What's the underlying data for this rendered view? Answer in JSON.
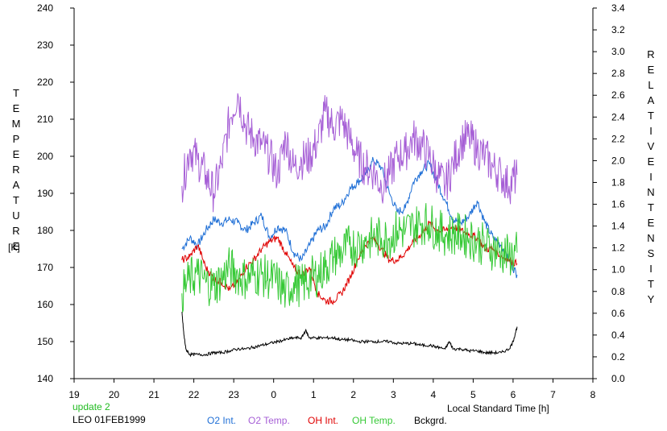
{
  "labels": {
    "left_axis_title": "TEMPERATURE",
    "left_axis_unit": "[K]",
    "right_axis_title_1": "RELATIVE",
    "right_axis_title_2": "INTENSITY",
    "x_axis_title": "Local Standard Time [h]",
    "update": "update 2",
    "station_date": "LEO 01FEB1999"
  },
  "colors": {
    "o2_int": "#1f6fd6",
    "o2_temp": "#a65fd6",
    "oh_int": "#e00000",
    "oh_temp": "#36c936",
    "bckgrd": "#000000",
    "update": "#22bb22"
  },
  "chart_data": {
    "type": "line",
    "x_ticks": [
      "19",
      "20",
      "21",
      "22",
      "23",
      "0",
      "1",
      "2",
      "3",
      "4",
      "5",
      "6",
      "7",
      "8"
    ],
    "xlim": [
      19,
      32
    ],
    "ylim_left": [
      140,
      240
    ],
    "yticks_left": [
      "140",
      "150",
      "160",
      "170",
      "180",
      "190",
      "200",
      "210",
      "220",
      "230",
      "240"
    ],
    "ylim_right": [
      0.0,
      3.4
    ],
    "yticks_right": [
      "0.0",
      "0.2",
      "0.4",
      "0.6",
      "0.8",
      "1.0",
      "1.2",
      "1.4",
      "1.6",
      "1.8",
      "2.0",
      "2.2",
      "2.4",
      "2.6",
      "2.8",
      "3.0",
      "3.2",
      "3.4"
    ],
    "series": [
      {
        "name": "O2 Int.",
        "axis": "left",
        "color_key": "o2_int",
        "x": [
          21.7,
          21.9,
          22.1,
          22.3,
          22.5,
          22.7,
          22.9,
          23.1,
          23.3,
          23.5,
          23.7,
          23.9,
          24.1,
          24.3,
          24.5,
          24.7,
          24.9,
          25.1,
          25.3,
          25.5,
          25.7,
          25.9,
          26.1,
          26.3,
          26.5,
          26.7,
          26.9,
          27.1,
          27.3,
          27.5,
          27.7,
          27.9,
          28.1,
          28.3,
          28.5,
          28.7,
          28.9,
          29.1,
          29.3,
          29.5,
          29.7,
          29.9,
          30.1
        ],
        "y": [
          175,
          178,
          176,
          180,
          183,
          182,
          183,
          182,
          180,
          182,
          184,
          178,
          181,
          180,
          174,
          172,
          176,
          180,
          181,
          186,
          187,
          191,
          193,
          195,
          199,
          197,
          190,
          185,
          186,
          193,
          196,
          198,
          193,
          188,
          183,
          182,
          184,
          188,
          182,
          178,
          176,
          172,
          168
        ]
      },
      {
        "name": "O2 Temp.",
        "axis": "left",
        "color_key": "o2_temp",
        "x": [
          21.7,
          21.9,
          22.1,
          22.3,
          22.5,
          22.7,
          22.9,
          23.1,
          23.3,
          23.5,
          23.7,
          23.9,
          24.1,
          24.3,
          24.5,
          24.7,
          24.9,
          25.1,
          25.3,
          25.5,
          25.7,
          25.9,
          26.1,
          26.3,
          26.5,
          26.7,
          26.9,
          27.1,
          27.3,
          27.5,
          27.7,
          27.9,
          28.1,
          28.3,
          28.5,
          28.7,
          28.9,
          29.1,
          29.3,
          29.5,
          29.7,
          29.9,
          30.1
        ],
        "y": [
          192,
          202,
          199,
          195,
          190,
          198,
          210,
          217,
          208,
          205,
          203,
          200,
          195,
          205,
          197,
          199,
          200,
          204,
          212,
          208,
          210,
          205,
          200,
          197,
          196,
          192,
          195,
          200,
          201,
          205,
          203,
          200,
          195,
          192,
          198,
          204,
          205,
          202,
          200,
          197,
          195,
          192,
          195
        ]
      },
      {
        "name": "OH Int.",
        "axis": "left",
        "color_key": "oh_int",
        "x": [
          21.7,
          21.9,
          22.1,
          22.3,
          22.5,
          22.7,
          22.9,
          23.1,
          23.3,
          23.5,
          23.7,
          23.9,
          24.1,
          24.3,
          24.5,
          24.7,
          24.9,
          25.1,
          25.3,
          25.5,
          25.7,
          25.9,
          26.1,
          26.3,
          26.5,
          26.7,
          26.9,
          27.1,
          27.3,
          27.5,
          27.7,
          27.9,
          28.1,
          28.3,
          28.5,
          28.7,
          28.9,
          29.1,
          29.3,
          29.5,
          29.7,
          29.9,
          30.1
        ],
        "y": [
          172,
          173,
          176,
          170,
          167,
          166,
          164,
          166,
          170,
          172,
          175,
          177,
          178,
          174,
          170,
          168,
          170,
          163,
          161,
          161,
          163,
          167,
          172,
          176,
          178,
          175,
          172,
          172,
          174,
          177,
          179,
          182,
          180,
          180,
          181,
          180,
          179,
          178,
          175,
          175,
          173,
          172,
          171
        ]
      },
      {
        "name": "OH Temp.",
        "axis": "left",
        "color_key": "oh_temp",
        "x": [
          21.7,
          21.9,
          22.1,
          22.3,
          22.5,
          22.7,
          22.9,
          23.1,
          23.3,
          23.5,
          23.7,
          23.9,
          24.1,
          24.3,
          24.5,
          24.7,
          24.9,
          25.1,
          25.3,
          25.5,
          25.7,
          25.9,
          26.1,
          26.3,
          26.5,
          26.7,
          26.9,
          27.1,
          27.3,
          27.5,
          27.7,
          27.9,
          28.1,
          28.3,
          28.5,
          28.7,
          28.9,
          29.1,
          29.3,
          29.5,
          29.7,
          29.9,
          30.1
        ],
        "y": [
          163,
          167,
          168,
          166,
          165,
          167,
          170,
          168,
          167,
          168,
          168,
          167,
          166,
          163,
          166,
          165,
          167,
          168,
          170,
          173,
          174,
          176,
          176,
          177,
          178,
          178,
          178,
          180,
          180,
          181,
          182,
          182,
          180,
          179,
          179,
          179,
          178,
          177,
          176,
          175,
          174,
          173,
          174
        ]
      },
      {
        "name": "Bckgrd.",
        "axis": "left",
        "color_key": "bckgrd",
        "x": [
          21.7,
          21.75,
          21.8,
          21.9,
          22.1,
          22.3,
          22.5,
          22.7,
          22.9,
          23.1,
          23.3,
          23.5,
          23.7,
          23.9,
          24.1,
          24.3,
          24.5,
          24.7,
          24.8,
          24.9,
          25.1,
          25.3,
          25.5,
          25.7,
          25.9,
          26.1,
          26.3,
          26.5,
          26.7,
          26.9,
          27.1,
          27.3,
          27.5,
          27.7,
          27.9,
          28.1,
          28.3,
          28.4,
          28.5,
          28.7,
          28.9,
          29.1,
          29.3,
          29.5,
          29.7,
          29.9,
          30.0,
          30.1
        ],
        "y": [
          158,
          152,
          148,
          146.5,
          146.5,
          146.5,
          147,
          147,
          147.5,
          148,
          148,
          148.5,
          149,
          149.5,
          150,
          150.5,
          151,
          151,
          153,
          151,
          151,
          151,
          151,
          150.5,
          150.5,
          150,
          150,
          150,
          150,
          150,
          149.5,
          149.5,
          149.5,
          149,
          149,
          148.5,
          148,
          150,
          148,
          148,
          147.5,
          147.5,
          147,
          147,
          147,
          148,
          150,
          154
        ]
      }
    ]
  }
}
